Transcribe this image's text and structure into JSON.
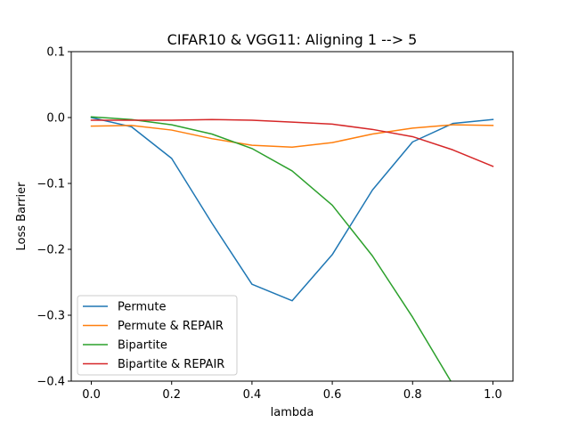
{
  "chart_data": {
    "type": "line",
    "title": "CIFAR10 & VGG11: Aligning 1 --> 5",
    "xlabel": "lambda",
    "ylabel": "Loss Barrier",
    "xlim": [
      -0.05,
      1.05
    ],
    "ylim": [
      -0.4,
      0.1
    ],
    "x_ticks": [
      0.0,
      0.2,
      0.4,
      0.6,
      0.8,
      1.0
    ],
    "x_tick_labels": [
      "0.0",
      "0.2",
      "0.4",
      "0.6",
      "0.8",
      "1.0"
    ],
    "y_ticks": [
      0.1,
      0.0,
      -0.1,
      -0.2,
      -0.3,
      -0.4
    ],
    "y_tick_labels": [
      "0.1",
      "0.0",
      "−0.1",
      "−0.2",
      "−0.3",
      "−0.4"
    ],
    "grid": false,
    "legend_position": "lower-left",
    "x": [
      0.0,
      0.1,
      0.2,
      0.3,
      0.4,
      0.5,
      0.6,
      0.7,
      0.8,
      0.9,
      1.0
    ],
    "series": [
      {
        "name": "Permute",
        "color": "#1f77b4",
        "values": [
          0.0,
          -0.014,
          -0.062,
          -0.16,
          -0.253,
          -0.278,
          -0.208,
          -0.11,
          -0.037,
          -0.009,
          -0.003
        ]
      },
      {
        "name": "Permute & REPAIR",
        "color": "#ff7f0e",
        "values": [
          -0.013,
          -0.012,
          -0.019,
          -0.032,
          -0.042,
          -0.045,
          -0.038,
          -0.025,
          -0.016,
          -0.011,
          -0.012
        ]
      },
      {
        "name": "Bipartite",
        "color": "#2ca02c",
        "values": [
          0.001,
          -0.003,
          -0.011,
          -0.025,
          -0.047,
          -0.081,
          -0.133,
          -0.21,
          -0.303,
          -0.405,
          null
        ]
      },
      {
        "name": "Bipartite & REPAIR",
        "color": "#d62728",
        "values": [
          -0.004,
          -0.004,
          -0.004,
          -0.003,
          -0.004,
          -0.007,
          -0.01,
          -0.018,
          -0.029,
          -0.049,
          -0.074
        ]
      }
    ]
  }
}
